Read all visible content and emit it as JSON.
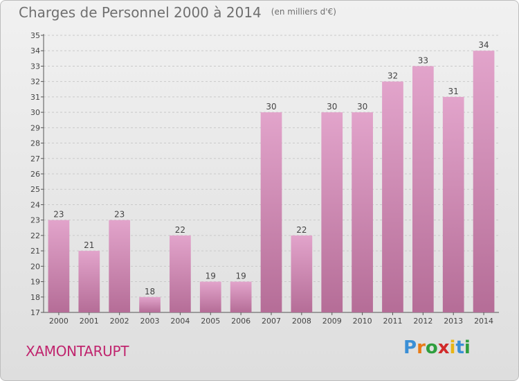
{
  "header": {
    "title": "Charges de Personnel 2000 à 2014",
    "subtitle": "(en milliers d'€)"
  },
  "footer": {
    "commune": "XAMONTARUPT",
    "logo": "Proxiti"
  },
  "colors": {
    "bar_top": "#e2a4cb",
    "bar_bottom": "#b56d97",
    "commune_text": "#c0256e",
    "gridline": "#c9c9c9"
  },
  "chart_data": {
    "type": "bar",
    "title": "Charges de Personnel 2000 à 2014",
    "subtitle": "(en milliers d'€)",
    "categories": [
      "2000",
      "2001",
      "2002",
      "2003",
      "2004",
      "2005",
      "2006",
      "2007",
      "2008",
      "2009",
      "2010",
      "2011",
      "2012",
      "2013",
      "2014"
    ],
    "values": [
      23,
      21,
      23,
      18,
      22,
      19,
      19,
      30,
      22,
      30,
      30,
      32,
      33,
      31,
      34
    ],
    "ylim": [
      17,
      35
    ],
    "yticks": [
      17,
      18,
      19,
      20,
      21,
      22,
      23,
      24,
      25,
      26,
      27,
      28,
      29,
      30,
      31,
      32,
      33,
      34,
      35
    ],
    "grid": true,
    "xlabel": "",
    "ylabel": ""
  }
}
